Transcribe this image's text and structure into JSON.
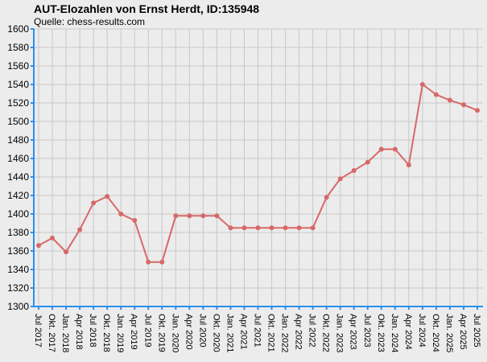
{
  "chart_data": {
    "type": "line",
    "title": "AUT-Elozahlen von Ernst Herdt, ID:135948",
    "subtitle": "Quelle: chess-results.com",
    "categories": [
      "Jul 2017",
      "Okt. 2017",
      "Jan. 2018",
      "Apr 2018",
      "Jul 2018",
      "Okt. 2018",
      "Jan. 2019",
      "Apr 2019",
      "Jul 2019",
      "Okt. 2019",
      "Jan. 2020",
      "Apr 2020",
      "Jul 2020",
      "Okt. 2020",
      "Jan. 2021",
      "Apr 2021",
      "Jul 2021",
      "Okt. 2021",
      "Jan. 2022",
      "Apr 2022",
      "Jul 2022",
      "Okt. 2022",
      "Jan. 2023",
      "Apr 2023",
      "Jul 2023",
      "Okt. 2023",
      "Jan. 2024",
      "Apr 2024",
      "Jul 2024",
      "Okt. 2024",
      "Jan. 2025",
      "Apr 2025",
      "Jul 2025"
    ],
    "values": [
      1366,
      1374,
      1359,
      1383,
      1412,
      1419,
      1400,
      1393,
      1348,
      1348,
      1398,
      1398,
      1398,
      1398,
      1385,
      1385,
      1385,
      1385,
      1385,
      1385,
      1385,
      1418,
      1438,
      1447,
      1456,
      1470,
      1470,
      1453,
      1540,
      1529,
      1523,
      1518,
      1512
    ],
    "color": "#d86868",
    "ylim": [
      1300,
      1600
    ],
    "yticks": [
      1300,
      1320,
      1340,
      1360,
      1380,
      1400,
      1420,
      1440,
      1460,
      1480,
      1500,
      1520,
      1540,
      1560,
      1580,
      1600
    ],
    "grid": true
  }
}
